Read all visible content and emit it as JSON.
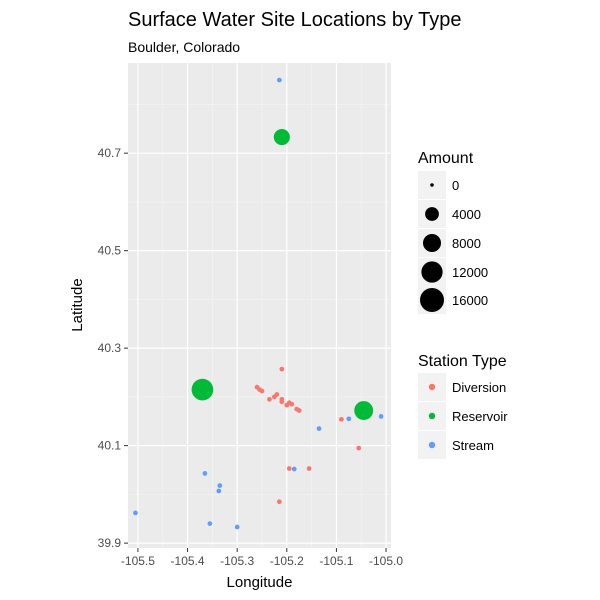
{
  "chart_data": {
    "type": "scatter",
    "title": "Surface Water Site Locations by Type",
    "subtitle": "Boulder, Colorado",
    "xlabel": "Longitude",
    "ylabel": "Latitude",
    "xlim": [
      -105.52,
      -104.99
    ],
    "ylim": [
      39.89,
      40.885
    ],
    "x_ticks": [
      -105.5,
      -105.4,
      -105.3,
      -105.2,
      -105.1,
      -105.0
    ],
    "x_tick_labels": [
      "-105.5",
      "-105.4",
      "-105.3",
      "-105.2",
      "-105.1",
      "-105.0"
    ],
    "y_ticks": [
      39.9,
      40.1,
      40.3,
      40.5,
      40.7
    ],
    "y_tick_labels": [
      "39.9",
      "40.1",
      "40.3",
      "40.5",
      "40.7"
    ],
    "grid": true,
    "background": "#ebebeb",
    "legend_position": "right",
    "size_legend": {
      "title": "Amount",
      "values": [
        0,
        4000,
        8000,
        12000,
        16000
      ],
      "labels": [
        "0",
        "4000",
        "8000",
        "12000",
        "16000"
      ]
    },
    "color_legend": {
      "title": "Station Type",
      "entries": [
        {
          "label": "Diversion",
          "color": "#f8766d"
        },
        {
          "label": "Reservoir",
          "color": "#00ba38"
        },
        {
          "label": "Stream",
          "color": "#619cff"
        }
      ]
    },
    "series": [
      {
        "name": "Diversion",
        "color": "#f8766d",
        "points": [
          {
            "x": -105.26,
            "y": 40.22,
            "amount": 50
          },
          {
            "x": -105.255,
            "y": 40.215,
            "amount": 50
          },
          {
            "x": -105.25,
            "y": 40.212,
            "amount": 50
          },
          {
            "x": -105.235,
            "y": 40.195,
            "amount": 50
          },
          {
            "x": -105.225,
            "y": 40.2,
            "amount": 50
          },
          {
            "x": -105.22,
            "y": 40.205,
            "amount": 50
          },
          {
            "x": -105.21,
            "y": 40.195,
            "amount": 50
          },
          {
            "x": -105.21,
            "y": 40.19,
            "amount": 50
          },
          {
            "x": -105.2,
            "y": 40.183,
            "amount": 50
          },
          {
            "x": -105.195,
            "y": 40.188,
            "amount": 50
          },
          {
            "x": -105.19,
            "y": 40.185,
            "amount": 50
          },
          {
            "x": -105.18,
            "y": 40.175,
            "amount": 50
          },
          {
            "x": -105.175,
            "y": 40.172,
            "amount": 50
          },
          {
            "x": -105.21,
            "y": 40.257,
            "amount": 50
          },
          {
            "x": -105.09,
            "y": 40.154,
            "amount": 50
          },
          {
            "x": -105.055,
            "y": 40.095,
            "amount": 50
          },
          {
            "x": -105.195,
            "y": 40.053,
            "amount": 50
          },
          {
            "x": -105.155,
            "y": 40.053,
            "amount": 50
          },
          {
            "x": -105.215,
            "y": 39.985,
            "amount": 50
          }
        ]
      },
      {
        "name": "Reservoir",
        "color": "#00ba38",
        "points": [
          {
            "x": -105.21,
            "y": 40.733,
            "amount": 6000
          },
          {
            "x": -105.37,
            "y": 40.215,
            "amount": 12500
          },
          {
            "x": -105.045,
            "y": 40.172,
            "amount": 9000
          }
        ]
      },
      {
        "name": "Stream",
        "color": "#619cff",
        "points": [
          {
            "x": -105.215,
            "y": 40.85,
            "amount": 50
          },
          {
            "x": -105.135,
            "y": 40.135,
            "amount": 50
          },
          {
            "x": -105.075,
            "y": 40.155,
            "amount": 50
          },
          {
            "x": -105.045,
            "y": 40.172,
            "amount": 50
          },
          {
            "x": -105.01,
            "y": 40.16,
            "amount": 50
          },
          {
            "x": -105.185,
            "y": 40.052,
            "amount": 50
          },
          {
            "x": -105.365,
            "y": 40.043,
            "amount": 50
          },
          {
            "x": -105.335,
            "y": 40.018,
            "amount": 50
          },
          {
            "x": -105.337,
            "y": 40.007,
            "amount": 50
          },
          {
            "x": -105.355,
            "y": 39.94,
            "amount": 50
          },
          {
            "x": -105.3,
            "y": 39.933,
            "amount": 50
          },
          {
            "x": -105.505,
            "y": 39.962,
            "amount": 50
          }
        ]
      }
    ]
  }
}
